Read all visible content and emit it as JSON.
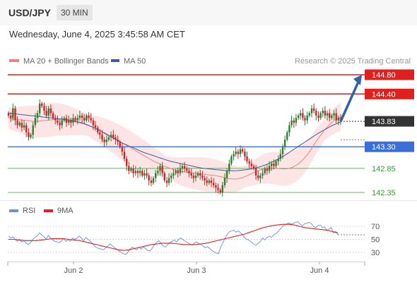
{
  "header": {
    "pair": "USD/JPY",
    "timeframe": "30 MIN",
    "datetime": "Wednesday, June 4, 2025 3:45:58 AM CET"
  },
  "legend": {
    "ma20": "MA 20 + Bollinger Bands",
    "ma50": "MA 50",
    "credit": "Research © 2025 Trading Central",
    "rsi": "RSI",
    "rsi_ma": "9MA"
  },
  "colors": {
    "resistance": "#e01f1f",
    "pivot": "#3a6fd8",
    "support": "#3a9a3a",
    "current_price": "#333333",
    "ma20": "#f08080",
    "ma50": "#3a5aa0",
    "bands": "#fde0e0",
    "bull": "#2e7d32",
    "bear": "#c62828",
    "arrow": "#3460a8",
    "rsi": "#6a8fe0",
    "rsi_ma": "#e01f1f"
  },
  "chart_data": [
    {
      "type": "candlestick",
      "title": "USD/JPY 30 MIN",
      "x_ticks": [
        "Jun 2",
        "Jun 3",
        "Jun 4"
      ],
      "ylim": [
        142.1,
        145.0
      ],
      "levels": [
        {
          "label": "144.80",
          "value": 144.8,
          "kind": "resistance"
        },
        {
          "label": "144.40",
          "value": 144.4,
          "kind": "resistance"
        },
        {
          "label": "143.83",
          "value": 143.83,
          "kind": "current"
        },
        {
          "label": "143.30",
          "value": 143.3,
          "kind": "pivot"
        },
        {
          "label": "142.85",
          "value": 142.85,
          "kind": "support"
        },
        {
          "label": "142.35",
          "value": 142.35,
          "kind": "support"
        }
      ],
      "series": [
        {
          "name": "MA 20 + Bollinger Bands"
        },
        {
          "name": "MA 50"
        }
      ],
      "close": [
        143.95,
        143.9,
        144.1,
        143.85,
        143.75,
        143.8,
        143.7,
        143.75,
        143.6,
        143.5,
        143.55,
        143.75,
        143.9,
        144.0,
        144.2,
        144.15,
        144.05,
        143.95,
        144.1,
        144.0,
        143.9,
        143.85,
        143.8,
        143.75,
        143.85,
        143.9,
        143.8,
        143.85,
        143.8,
        143.9,
        143.85,
        143.9,
        143.95,
        143.9,
        143.85,
        143.95,
        143.9,
        143.85,
        143.75,
        143.7,
        143.6,
        143.55,
        143.45,
        143.4,
        143.45,
        143.5,
        143.55,
        143.5,
        143.45,
        143.4,
        143.3,
        143.2,
        143.05,
        142.9,
        142.8,
        142.85,
        142.75,
        142.8,
        142.75,
        142.8,
        142.7,
        142.75,
        142.7,
        142.6,
        142.55,
        142.65,
        142.75,
        142.8,
        142.9,
        142.75,
        142.6,
        142.55,
        142.65,
        142.7,
        142.75,
        142.8,
        142.75,
        142.85,
        142.9,
        142.85,
        142.8,
        142.75,
        142.7,
        142.65,
        142.7,
        142.75,
        142.7,
        142.65,
        142.6,
        142.55,
        142.6,
        142.55,
        142.5,
        142.45,
        142.4,
        142.35,
        142.5,
        142.65,
        142.8,
        142.95,
        143.1,
        143.15,
        143.2,
        143.15,
        143.25,
        143.2,
        143.1,
        143.0,
        142.95,
        142.9,
        142.85,
        142.7,
        142.65,
        142.7,
        142.75,
        142.85,
        142.8,
        142.9,
        142.95,
        142.9,
        143.0,
        143.05,
        143.15,
        143.3,
        143.45,
        143.6,
        143.75,
        143.85,
        143.8,
        143.9,
        143.95,
        144.0,
        143.9,
        143.85,
        143.95,
        144.0,
        144.1,
        144.05,
        143.95,
        143.9,
        144.0,
        144.05,
        143.95,
        144.0,
        143.9,
        143.95,
        144.0,
        143.85,
        143.9,
        143.83
      ],
      "ma20": [
        143.9,
        143.88,
        143.87,
        143.86,
        143.85,
        143.84,
        143.83,
        143.83,
        143.84,
        143.85,
        143.86,
        143.87,
        143.87,
        143.86,
        143.85,
        143.84,
        143.82,
        143.8,
        143.78,
        143.75,
        143.72,
        143.68,
        143.64,
        143.6,
        143.55,
        143.5,
        143.45,
        143.4,
        143.35,
        143.3,
        143.25,
        143.2,
        143.15,
        143.1,
        143.05,
        143.0,
        142.96,
        142.92,
        142.88,
        142.85,
        142.82,
        142.8,
        142.78,
        142.77,
        142.76,
        142.75,
        142.74,
        142.73,
        142.72,
        142.71,
        142.7,
        142.68,
        142.66,
        142.64,
        142.63,
        142.63,
        142.65,
        142.68,
        142.72,
        142.76,
        142.8,
        142.83,
        142.85,
        142.86,
        142.86,
        142.85,
        142.84,
        142.84,
        142.86,
        142.9,
        142.96,
        143.04,
        143.14,
        143.26,
        143.4,
        143.52,
        143.64,
        143.74,
        143.82,
        143.88,
        143.92
      ],
      "ma50": [
        144.0,
        143.99,
        143.98,
        143.97,
        143.96,
        143.95,
        143.94,
        143.93,
        143.92,
        143.91,
        143.9,
        143.89,
        143.88,
        143.87,
        143.86,
        143.84,
        143.82,
        143.79,
        143.76,
        143.72,
        143.68,
        143.63,
        143.58,
        143.53,
        143.48,
        143.43,
        143.38,
        143.34,
        143.3,
        143.26,
        143.22,
        143.18,
        143.15,
        143.12,
        143.09,
        143.06,
        143.03,
        143.0,
        142.98,
        142.96,
        142.94,
        142.92,
        142.9,
        142.88,
        142.86,
        142.85,
        142.84,
        142.83,
        142.82,
        142.81,
        142.8,
        142.8,
        142.8,
        142.81,
        142.82,
        142.83,
        142.85,
        142.87,
        142.9,
        142.93,
        142.97,
        143.01,
        143.06,
        143.11,
        143.17,
        143.23,
        143.29,
        143.35,
        143.41,
        143.47,
        143.53,
        143.59,
        143.64,
        143.69,
        143.74,
        143.78,
        143.82
      ]
    },
    {
      "type": "line",
      "title": "RSI",
      "ylim": [
        20,
        80
      ],
      "y_ticks": [
        70,
        50,
        30
      ],
      "series": [
        {
          "name": "RSI",
          "values": [
            55,
            52,
            54,
            50,
            47,
            50,
            46,
            48,
            44,
            42,
            45,
            50,
            53,
            55,
            60,
            57,
            54,
            50,
            56,
            52,
            49,
            47,
            46,
            45,
            48,
            51,
            47,
            49,
            47,
            52,
            50,
            52,
            55,
            52,
            48,
            53,
            50,
            47,
            43,
            40,
            37,
            36,
            35,
            34,
            37,
            40,
            43,
            40,
            37,
            35,
            32,
            30,
            28,
            27,
            30,
            35,
            38,
            36,
            34,
            38,
            35,
            38,
            36,
            33,
            32,
            36,
            42,
            45,
            48,
            44,
            40,
            38,
            42,
            45,
            47,
            49,
            46,
            50,
            52,
            49,
            47,
            45,
            43,
            41,
            44,
            46,
            44,
            42,
            40,
            37,
            39,
            36,
            33,
            31,
            29,
            28,
            38,
            45,
            52,
            58,
            62,
            63,
            64,
            61,
            63,
            60,
            56,
            52,
            50,
            48,
            46,
            42,
            41,
            44,
            47,
            52,
            49,
            53,
            55,
            53,
            57,
            59,
            62,
            66,
            70,
            72,
            74,
            75,
            73,
            75,
            76,
            77,
            73,
            71,
            74,
            75,
            76,
            74,
            70,
            68,
            71,
            72,
            68,
            69,
            64,
            66,
            68,
            60,
            62,
            57
          ]
        },
        {
          "name": "9MA",
          "values": [
            50,
            50,
            49,
            48,
            48,
            48,
            49,
            50,
            51,
            51,
            51,
            50,
            49,
            48,
            46,
            44,
            42,
            40,
            38,
            36,
            34,
            33,
            34,
            36,
            38,
            40,
            42,
            43,
            44,
            44,
            44,
            43,
            42,
            42,
            42,
            43,
            44,
            46,
            48,
            50,
            52,
            54,
            56,
            58,
            61,
            64,
            67,
            69,
            71,
            72,
            73,
            73,
            72,
            70,
            68,
            67,
            66,
            65,
            64,
            62,
            60
          ]
        }
      ]
    }
  ]
}
